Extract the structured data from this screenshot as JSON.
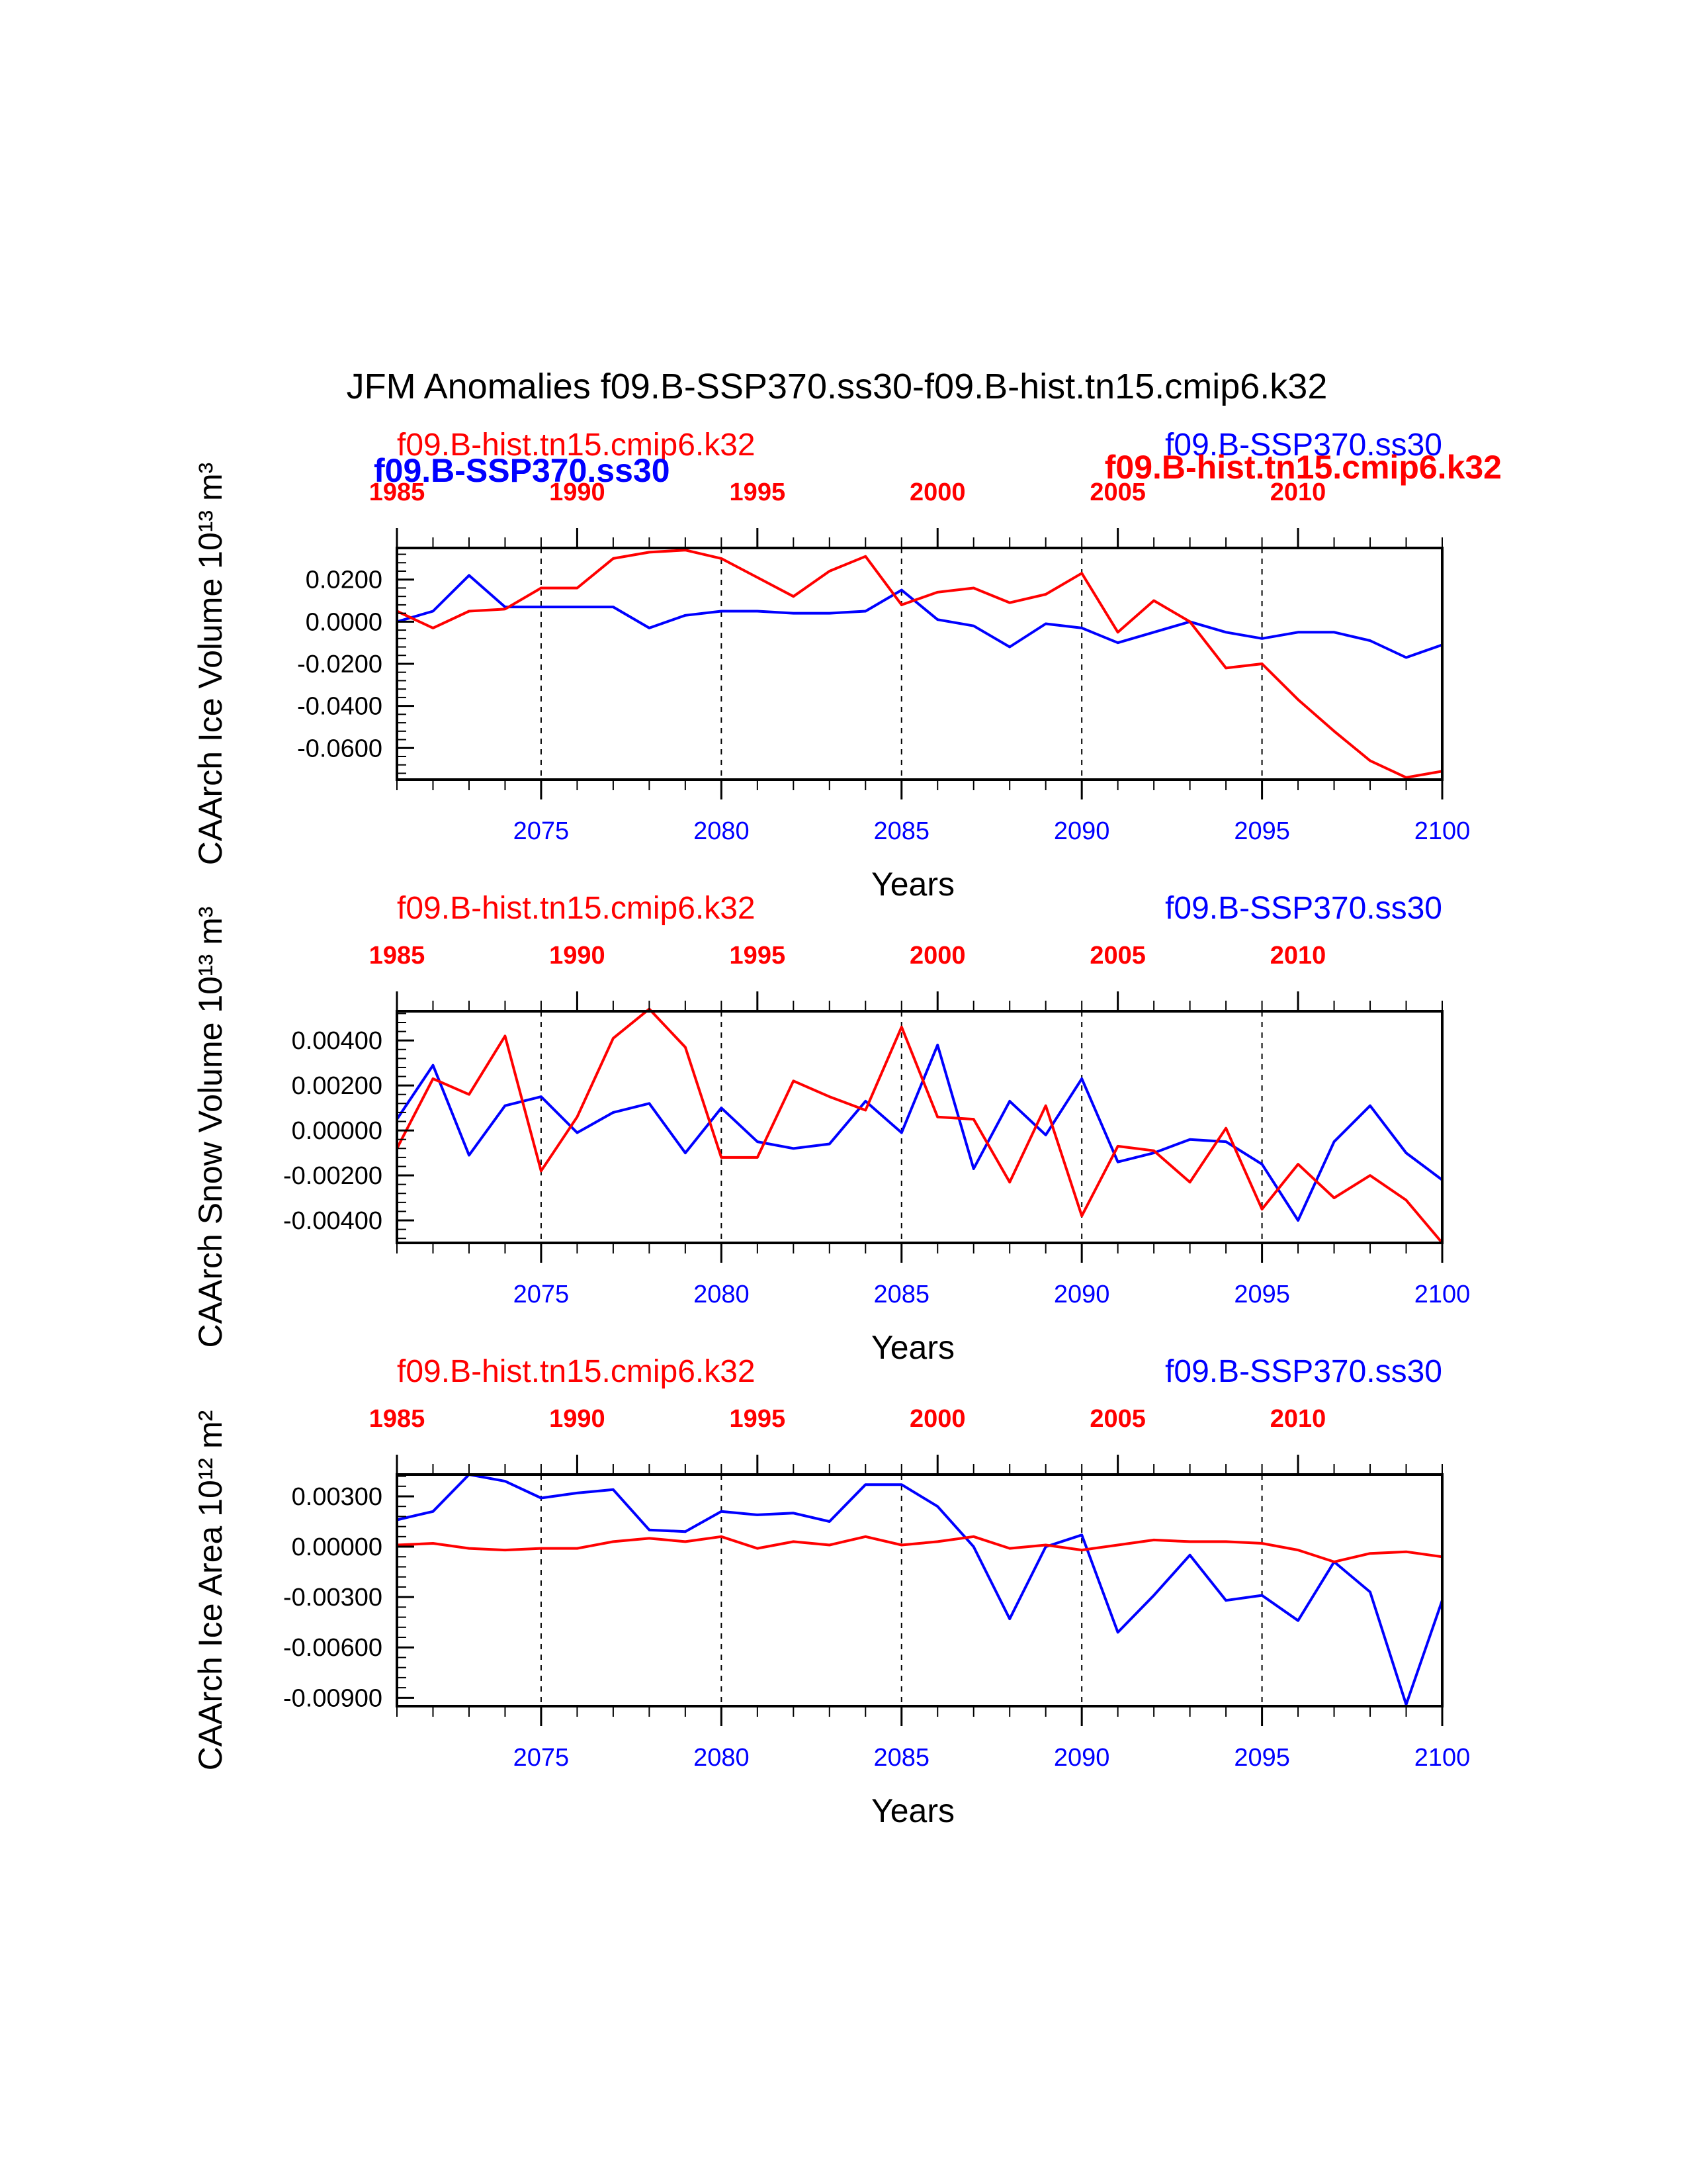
{
  "title": "JFM Anomalies f09.B-SSP370.ss30-f09.B-hist.tn15.cmip6.k32",
  "colors": {
    "blue": "#0000ff",
    "red": "#ff0000",
    "axis": "#000000"
  },
  "chart_data": [
    {
      "type": "line",
      "ylabel": "CAArch Ice Volume 10¹³ m³",
      "xlabel": "Years",
      "bottom_axis_ticks": [
        "2075",
        "2080",
        "2085",
        "2090",
        "2095",
        "2100"
      ],
      "top_axis_ticks": [
        "1985",
        "1990",
        "1995",
        "2000",
        "2005",
        "2010"
      ],
      "y_tick_labels": [
        "0.0200",
        "0.0000",
        "-0.0200",
        "-0.0400",
        "-0.0600"
      ],
      "y_ticks": [
        0.02,
        0.0,
        -0.02,
        -0.04,
        -0.06
      ],
      "ylim": [
        -0.075,
        0.035
      ],
      "vertical_reference_lines_at_year": [
        2075,
        2080,
        2085,
        2090,
        2095
      ],
      "top_left_label": "f09.B-hist.tn15.cmip6.k32",
      "top_left_label_bold": "f09.B-SSP370.ss30",
      "top_right_label": "f09.B-SSP370.ss30",
      "top_right_label_bold": "f09.B-hist.tn15.cmip6.k32",
      "series": [
        {
          "name": "f09.B-SSP370.ss30",
          "color": "#0000ff",
          "x": [
            2071,
            2072,
            2073,
            2074,
            2075,
            2076,
            2077,
            2078,
            2079,
            2080,
            2081,
            2082,
            2083,
            2084,
            2085,
            2086,
            2087,
            2088,
            2089,
            2090,
            2091,
            2092,
            2093,
            2094,
            2095,
            2096,
            2097,
            2098,
            2099,
            2100
          ],
          "values": [
            0.0,
            0.005,
            0.022,
            0.007,
            0.007,
            0.007,
            0.007,
            -0.003,
            0.003,
            0.005,
            0.005,
            0.004,
            0.004,
            0.005,
            0.015,
            0.001,
            -0.002,
            -0.012,
            -0.001,
            -0.003,
            -0.01,
            -0.005,
            0.0,
            -0.005,
            -0.008,
            -0.005,
            -0.005,
            -0.009,
            -0.017,
            -0.011
          ]
        },
        {
          "name": "f09.B-hist.tn15.cmip6.k32",
          "color": "#ff0000",
          "x": [
            1985,
            1986,
            1987,
            1988,
            1989,
            1990,
            1991,
            1992,
            1993,
            1994,
            1995,
            1996,
            1997,
            1998,
            1999,
            2000,
            2001,
            2002,
            2003,
            2004,
            2005,
            2006,
            2007,
            2008,
            2009,
            2010,
            2011,
            2012,
            2013,
            2014
          ],
          "values": [
            0.005,
            -0.003,
            0.005,
            0.006,
            0.016,
            0.016,
            0.03,
            0.033,
            0.034,
            0.03,
            0.021,
            0.012,
            0.024,
            0.031,
            0.008,
            0.014,
            0.016,
            0.009,
            0.013,
            0.023,
            -0.005,
            0.01,
            0.0,
            -0.022,
            -0.02,
            -0.037,
            -0.052,
            -0.066,
            -0.074,
            -0.071
          ]
        }
      ]
    },
    {
      "type": "line",
      "ylabel": "CAArch Snow Volume 10¹³ m³",
      "xlabel": "Years",
      "bottom_axis_ticks": [
        "2075",
        "2080",
        "2085",
        "2090",
        "2095",
        "2100"
      ],
      "top_axis_ticks": [
        "1985",
        "1990",
        "1995",
        "2000",
        "2005",
        "2010"
      ],
      "y_tick_labels": [
        "0.00400",
        "0.00200",
        "0.00000",
        "-0.00200",
        "-0.00400"
      ],
      "y_ticks": [
        0.004,
        0.002,
        0.0,
        -0.002,
        -0.004
      ],
      "ylim": [
        -0.005,
        0.0053
      ],
      "vertical_reference_lines_at_year": [
        2075,
        2080,
        2085,
        2090,
        2095
      ],
      "top_left_label": "f09.B-hist.tn15.cmip6.k32",
      "top_right_label": "f09.B-SSP370.ss30",
      "series": [
        {
          "name": "f09.B-SSP370.ss30",
          "color": "#0000ff",
          "x": [
            2071,
            2072,
            2073,
            2074,
            2075,
            2076,
            2077,
            2078,
            2079,
            2080,
            2081,
            2082,
            2083,
            2084,
            2085,
            2086,
            2087,
            2088,
            2089,
            2090,
            2091,
            2092,
            2093,
            2094,
            2095,
            2096,
            2097,
            2098,
            2099,
            2100
          ],
          "values": [
            0.0005,
            0.0029,
            -0.0011,
            0.0011,
            0.0015,
            -0.0001,
            0.0008,
            0.0012,
            -0.001,
            0.001,
            -0.0005,
            -0.0008,
            -0.0006,
            0.0013,
            -0.0001,
            0.0038,
            -0.0017,
            0.0013,
            -0.0002,
            0.0023,
            -0.0014,
            -0.001,
            -0.0004,
            -0.0005,
            -0.0015,
            -0.004,
            -0.0005,
            0.0011,
            -0.001,
            -0.0022
          ]
        },
        {
          "name": "f09.B-hist.tn15.cmip6.k32",
          "color": "#ff0000",
          "x": [
            1985,
            1986,
            1987,
            1988,
            1989,
            1990,
            1991,
            1992,
            1993,
            1994,
            1995,
            1996,
            1997,
            1998,
            1999,
            2000,
            2001,
            2002,
            2003,
            2004,
            2005,
            2006,
            2007,
            2008,
            2009,
            2010,
            2011,
            2012,
            2013,
            2014
          ],
          "values": [
            -0.0008,
            0.0023,
            0.0016,
            0.0042,
            -0.0018,
            0.0006,
            0.0041,
            0.0054,
            0.0037,
            -0.0012,
            -0.0012,
            0.0022,
            0.0015,
            0.0009,
            0.0046,
            0.0006,
            0.0005,
            -0.0023,
            0.0011,
            -0.0038,
            -0.0007,
            -0.0009,
            -0.0023,
            0.0001,
            -0.0035,
            -0.0015,
            -0.003,
            -0.002,
            -0.0031,
            -0.005
          ]
        }
      ]
    },
    {
      "type": "line",
      "ylabel": "CAArch Ice Area 10¹² m²",
      "xlabel": "Years",
      "bottom_axis_ticks": [
        "2075",
        "2080",
        "2085",
        "2090",
        "2095",
        "2100"
      ],
      "top_axis_ticks": [
        "1985",
        "1990",
        "1995",
        "2000",
        "2005",
        "2010"
      ],
      "y_tick_labels": [
        "0.00300",
        "0.00000",
        "-0.00300",
        "-0.00600",
        "-0.00900"
      ],
      "y_ticks": [
        0.003,
        0.0,
        -0.003,
        -0.006,
        -0.009
      ],
      "ylim": [
        -0.0095,
        0.0043
      ],
      "vertical_reference_lines_at_year": [
        2075,
        2080,
        2085,
        2090,
        2095
      ],
      "top_left_label": "f09.B-hist.tn15.cmip6.k32",
      "top_right_label": "f09.B-SSP370.ss30",
      "series": [
        {
          "name": "f09.B-SSP370.ss30",
          "color": "#0000ff",
          "x": [
            2071,
            2072,
            2073,
            2074,
            2075,
            2076,
            2077,
            2078,
            2079,
            2080,
            2081,
            2082,
            2083,
            2084,
            2085,
            2086,
            2087,
            2088,
            2089,
            2090,
            2091,
            2092,
            2093,
            2094,
            2095,
            2096,
            2097,
            2098,
            2099,
            2100
          ],
          "values": [
            0.0016,
            0.0021,
            0.0043,
            0.0039,
            0.0029,
            0.0032,
            0.0034,
            0.001,
            0.0009,
            0.0021,
            0.0019,
            0.002,
            0.0015,
            0.0037,
            0.0037,
            0.0024,
            0.0,
            -0.0043,
            0.0,
            0.0007,
            -0.0051,
            -0.0029,
            -0.0005,
            -0.0032,
            -0.0029,
            -0.0044,
            -0.0009,
            -0.0027,
            -0.0094,
            -0.0032
          ]
        },
        {
          "name": "f09.B-hist.tn15.cmip6.k32",
          "color": "#ff0000",
          "x": [
            1985,
            1986,
            1987,
            1988,
            1989,
            1990,
            1991,
            1992,
            1993,
            1994,
            1995,
            1996,
            1997,
            1998,
            1999,
            2000,
            2001,
            2002,
            2003,
            2004,
            2005,
            2006,
            2007,
            2008,
            2009,
            2010,
            2011,
            2012,
            2013,
            2014
          ],
          "values": [
            0.0001,
            0.0002,
            -0.0001,
            -0.0002,
            -0.0001,
            -0.0001,
            0.0003,
            0.0005,
            0.0003,
            0.0006,
            -0.0001,
            0.0003,
            0.0001,
            0.0006,
            0.0001,
            0.0003,
            0.0006,
            -0.0001,
            0.0001,
            -0.0002,
            0.0001,
            0.0004,
            0.0003,
            0.0003,
            0.0002,
            -0.0002,
            -0.0009,
            -0.0004,
            -0.0003,
            -0.0006
          ]
        }
      ]
    }
  ]
}
